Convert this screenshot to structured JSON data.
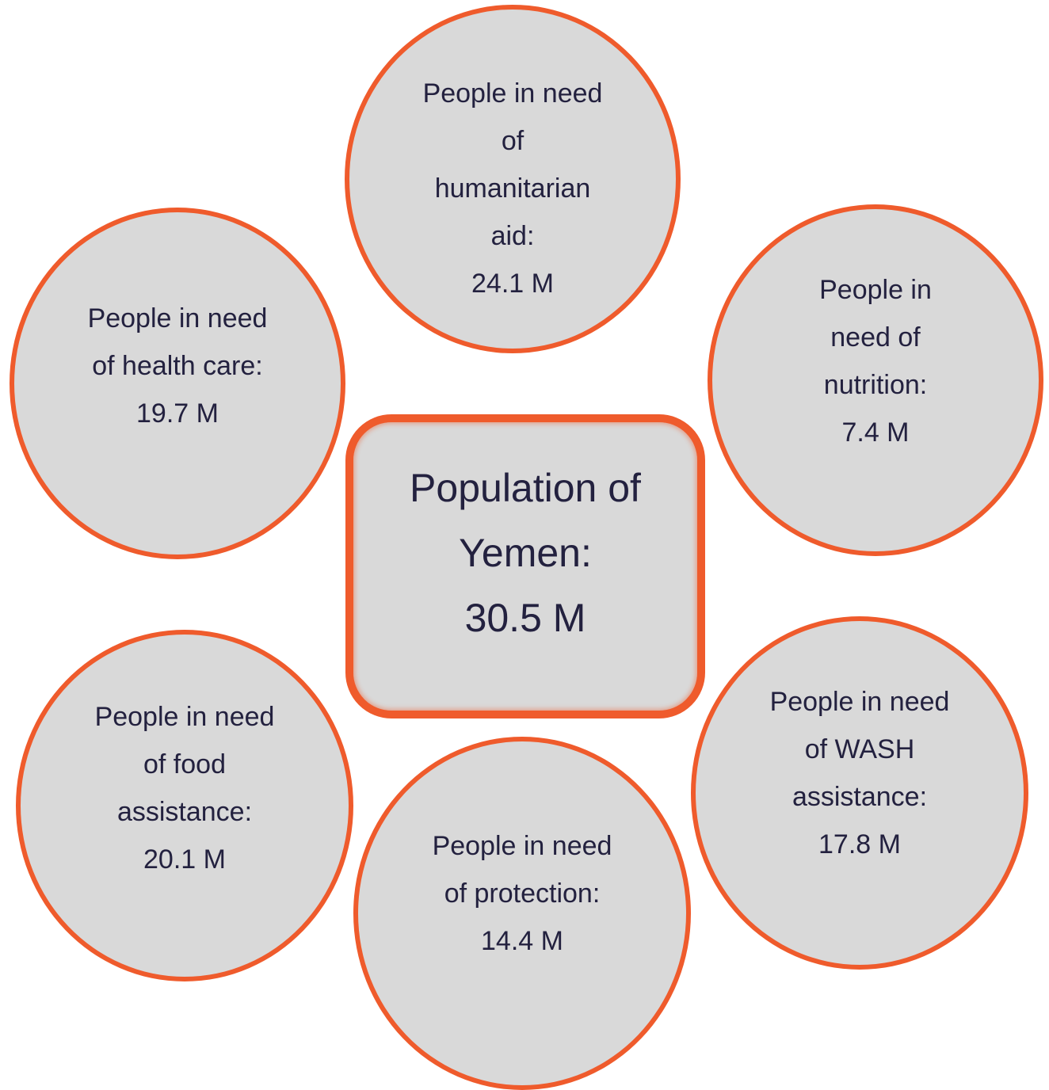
{
  "center": {
    "lines": [
      "Population of",
      "Yemen:",
      "30.5 M"
    ]
  },
  "bubbles": {
    "humanitarian": {
      "lines": [
        "People in need",
        "of",
        "humanitarian",
        "aid:",
        "24.1 M"
      ]
    },
    "health": {
      "lines": [
        "People in need",
        "of health care:",
        "19.7 M"
      ]
    },
    "nutrition": {
      "lines": [
        "People in",
        "need of",
        "nutrition:",
        "7.4 M"
      ]
    },
    "food": {
      "lines": [
        "People in need",
        "of food",
        "assistance:",
        "20.1 M"
      ]
    },
    "protection": {
      "lines": [
        "People in need",
        "of protection:",
        "14.4 M"
      ]
    },
    "wash": {
      "lines": [
        "People in need",
        "of WASH",
        "assistance:",
        "17.8 M"
      ]
    }
  },
  "colors": {
    "border": "#ef5b2c",
    "fill": "#d9d9d9",
    "text": "#23213f"
  }
}
